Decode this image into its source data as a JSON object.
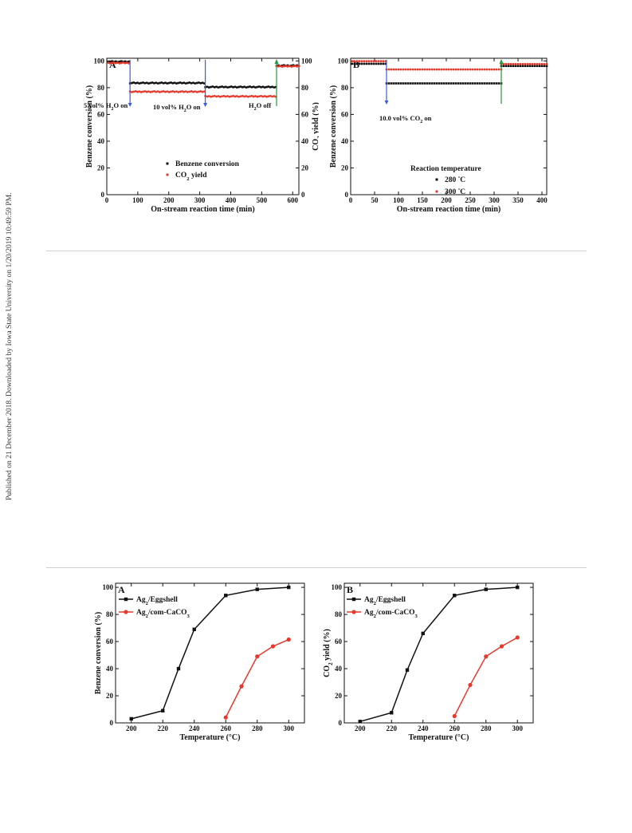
{
  "side_note": "Published on 21 December 2018. Downloaded by Iowa State University on 1/20/2019 10:49:59 PM.",
  "colors": {
    "black_series": "#111111",
    "red_series": "#e8392d",
    "blue_arrow": "#3b5fd9",
    "green_arrow": "#1f9a3b",
    "rule": "#cfcfcf"
  },
  "chart_data": [
    {
      "type": "scatter",
      "panel_label": "A",
      "xlabel": "On-stream reaction time (min)",
      "ylabel": "Benzene conversion (%)",
      "ylabel2": "CO2 yield (%)",
      "xlim": [
        0,
        620
      ],
      "ylim": [
        0,
        102
      ],
      "y2lim": [
        0,
        102
      ],
      "xticks": [
        0,
        100,
        200,
        300,
        400,
        500,
        600
      ],
      "yticks": [
        0,
        20,
        40,
        60,
        80,
        100
      ],
      "legend": {
        "placement": "bottom-center",
        "entries": [
          "Benzene conversion",
          "CO2 yield"
        ]
      },
      "series": [
        {
          "name": "Benzene conversion",
          "color": "#111111",
          "segments": [
            {
              "x0": 5,
              "x1": 75,
              "y": 99.5,
              "step": 6
            },
            {
              "x0": 75,
              "x1": 318,
              "y": 83.5,
              "step": 6
            },
            {
              "x0": 318,
              "x1": 548,
              "y": 80.5,
              "step": 6
            },
            {
              "x0": 548,
              "x1": 620,
              "y": 96.5,
              "step": 6
            }
          ]
        },
        {
          "name": "CO2 yield",
          "color": "#e8392d",
          "segments": [
            {
              "x0": 5,
              "x1": 75,
              "y": 98.5,
              "step": 6
            },
            {
              "x0": 75,
              "x1": 318,
              "y": 77,
              "step": 6
            },
            {
              "x0": 318,
              "x1": 548,
              "y": 73.5,
              "step": 6
            },
            {
              "x0": 548,
              "x1": 620,
              "y": 96,
              "step": 6
            }
          ]
        }
      ],
      "annotations": [
        {
          "text": "5 vol% H2O on",
          "x": 75,
          "arrow": "down",
          "color": "#3b5fd9"
        },
        {
          "text": "10 vol% H2O on",
          "x": 318,
          "arrow": "down",
          "color": "#3b5fd9"
        },
        {
          "text": "H2O off",
          "x": 548,
          "arrow": "up",
          "color": "#1f9a3b"
        }
      ]
    },
    {
      "type": "scatter",
      "panel_label": "B",
      "xlabel": "On-stream reaction time (min)",
      "ylabel": "Benzene conversion (%)",
      "xlim": [
        0,
        410
      ],
      "ylim": [
        0,
        102
      ],
      "xticks": [
        0,
        50,
        100,
        150,
        200,
        250,
        300,
        350,
        400
      ],
      "yticks": [
        0,
        20,
        40,
        60,
        80,
        100
      ],
      "legend": {
        "title": "Reaction temperature",
        "placement": "bottom-center",
        "entries": [
          "280 °C",
          "300 °C"
        ]
      },
      "series": [
        {
          "name": "280 °C",
          "color": "#111111",
          "segments": [
            {
              "x0": 3,
              "x1": 75,
              "y": 98,
              "step": 5
            },
            {
              "x0": 75,
              "x1": 315,
              "y": 83.5,
              "step": 5
            },
            {
              "x0": 315,
              "x1": 410,
              "y": 96.5,
              "step": 5
            }
          ]
        },
        {
          "name": "300 °C",
          "color": "#e8392d",
          "segments": [
            {
              "x0": 3,
              "x1": 75,
              "y": 99.5,
              "step": 5
            },
            {
              "x0": 75,
              "x1": 315,
              "y": 93.5,
              "step": 5
            },
            {
              "x0": 315,
              "x1": 410,
              "y": 97.5,
              "step": 5
            }
          ]
        }
      ],
      "annotations": [
        {
          "text": "10.0 vol% CO2 on",
          "x": 75,
          "arrow": "down",
          "color": "#3b5fd9"
        },
        {
          "text": "",
          "x": 315,
          "arrow": "up",
          "color": "#1f9a3b"
        }
      ]
    },
    {
      "type": "line",
      "panel_label": "A",
      "xlabel": "Temperature (°C)",
      "ylabel": "Benzene conversion (%)",
      "xlim": [
        190,
        310
      ],
      "ylim": [
        0,
        103
      ],
      "xticks": [
        200,
        220,
        240,
        260,
        280,
        300
      ],
      "yticks": [
        0,
        20,
        40,
        60,
        80,
        100
      ],
      "legend": {
        "placement": "top-left",
        "entries": [
          "Ag2/Eggshell",
          "Ag2/com-CaCO3"
        ]
      },
      "series": [
        {
          "name": "Ag2/Eggshell",
          "color": "#111111",
          "marker": "square",
          "x": [
            200,
            220,
            230,
            240,
            260,
            280,
            300
          ],
          "y": [
            3,
            9,
            40,
            69,
            94,
            98.5,
            100
          ]
        },
        {
          "name": "Ag2/com-CaCO3",
          "color": "#e8392d",
          "marker": "circle",
          "x": [
            260,
            270,
            280,
            290,
            300
          ],
          "y": [
            4,
            27,
            49,
            56.5,
            61.5
          ]
        }
      ]
    },
    {
      "type": "line",
      "panel_label": "B",
      "xlabel": "Temperature (°C)",
      "ylabel": "CO2 yield (%)",
      "xlim": [
        190,
        310
      ],
      "ylim": [
        0,
        103
      ],
      "xticks": [
        200,
        220,
        240,
        260,
        280,
        300
      ],
      "yticks": [
        0,
        20,
        40,
        60,
        80,
        100
      ],
      "legend": {
        "placement": "top-left",
        "entries": [
          "Ag2/Eggshell",
          "Ag2/com-CaCO3"
        ]
      },
      "series": [
        {
          "name": "Ag2/Eggshell",
          "color": "#111111",
          "marker": "square",
          "x": [
            200,
            220,
            230,
            240,
            260,
            280,
            300
          ],
          "y": [
            1,
            7.5,
            39,
            66,
            94,
            98.5,
            100
          ]
        },
        {
          "name": "Ag2/com-CaCO3",
          "color": "#e8392d",
          "marker": "circle",
          "x": [
            260,
            270,
            280,
            290,
            300
          ],
          "y": [
            5,
            28,
            49,
            56.5,
            63
          ]
        }
      ]
    }
  ]
}
